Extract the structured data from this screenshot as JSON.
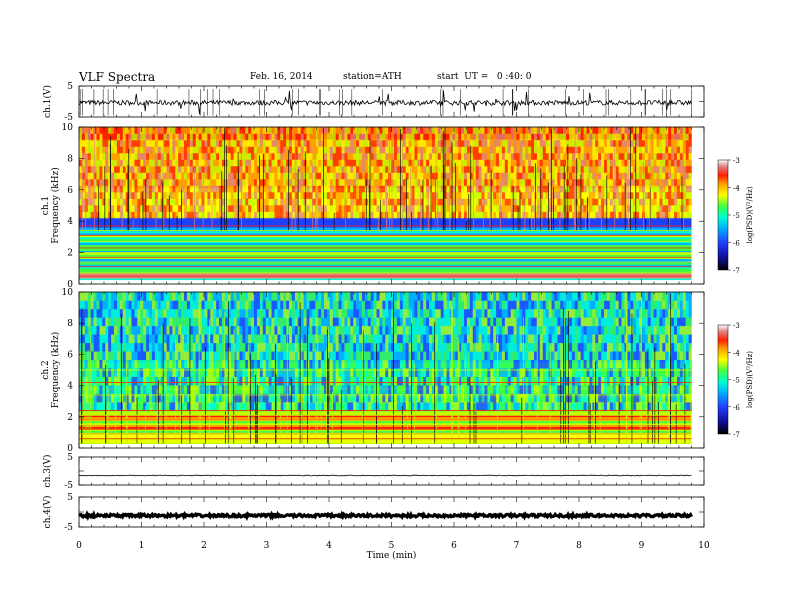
{
  "header": {
    "title": "VLF Spectra",
    "date": "Feb. 16, 2014",
    "station": "station=ATH",
    "start": "start  UT =   0 :40: 0"
  },
  "chart_data": [
    {
      "type": "line",
      "panel": "ch1-waveform",
      "ylabel": "ch.1(V)",
      "yticks": [
        "5",
        "-5"
      ],
      "ylim": [
        -5,
        5
      ],
      "xlim": [
        0,
        10
      ]
    },
    {
      "type": "heatmap",
      "panel": "ch1-spectrogram",
      "ylabel_top": "ch.1",
      "ylabel": "Frequency  (kHz)",
      "yticks": [
        "0",
        "2",
        "4",
        "6",
        "8",
        "10"
      ],
      "ylim": [
        0,
        10
      ],
      "xlim": [
        0,
        9.8
      ],
      "colorbar": {
        "label": "log(PSD)(V²/Hz)",
        "ticks": [
          "-3",
          "-4",
          "-5",
          "-6",
          "-7"
        ],
        "range": [
          -7,
          -3
        ]
      }
    },
    {
      "type": "heatmap",
      "panel": "ch2-spectrogram",
      "ylabel_top": "ch.2",
      "ylabel": "Frequency  (kHz)",
      "yticks": [
        "0",
        "2",
        "4",
        "6",
        "8",
        "10"
      ],
      "ylim": [
        0,
        10
      ],
      "xlim": [
        0,
        9.8
      ],
      "colorbar": {
        "label": "log(PSD)(V²/Hz)",
        "ticks": [
          "-3",
          "-4",
          "-5",
          "-6",
          "-7"
        ],
        "range": [
          -7,
          -3
        ]
      }
    },
    {
      "type": "line",
      "panel": "ch3-waveform",
      "ylabel": "ch.3(V)",
      "yticks": [
        "5",
        "-5"
      ],
      "ylim": [
        -5,
        5
      ],
      "xlim": [
        0,
        10
      ]
    },
    {
      "type": "line",
      "panel": "ch4-waveform",
      "ylabel": "ch.4(V)",
      "yticks": [
        "5",
        "-5"
      ],
      "ylim": [
        -5,
        5
      ],
      "xlim": [
        0,
        10
      ]
    }
  ],
  "xaxis": {
    "label": "Time  (min)",
    "ticks": [
      "0",
      "1",
      "2",
      "3",
      "4",
      "5",
      "6",
      "7",
      "8",
      "9",
      "10"
    ],
    "xlim": [
      0,
      10
    ]
  },
  "colors": {
    "trace": "#000000",
    "colormap": [
      "#000000",
      "#1010a0",
      "#2040ff",
      "#00b0ff",
      "#00ffd0",
      "#40ff40",
      "#c0ff00",
      "#ffff00",
      "#ffa000",
      "#ff2000",
      "#e08080",
      "#ffffff"
    ]
  }
}
